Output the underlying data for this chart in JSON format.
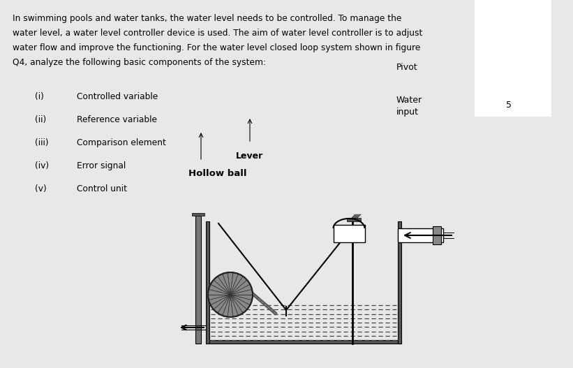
{
  "background_color": "#c8c8c8",
  "content_bg": "#e8e8e8",
  "fig_width": 8.21,
  "fig_height": 5.27,
  "dpi": 100,
  "paragraph_text": "In swimming pools and water tanks, the water level needs to be controlled. To manage the\nwater level, a water level controller device is used. The aim of water level controller is to adjust\nwater flow and improve the functioning. For the water level closed loop system shown in figure\nQ4, analyze the following basic components of the system:",
  "list_items": [
    {
      "roman": "(i)",
      "text": "Controlled variable"
    },
    {
      "roman": "(ii)",
      "text": "Reference variable"
    },
    {
      "roman": "(iii)",
      "text": "Comparison element"
    },
    {
      "roman": "(iv)",
      "text": "Error signal"
    },
    {
      "roman": "(v)",
      "text": "Control unit"
    }
  ],
  "diagram_label_hollow_ball": "Hollow ball",
  "diagram_label_lever": "Lever",
  "diagram_label_water_input": "Water\ninput",
  "diagram_label_pivot": "Pivot",
  "number_5": "5"
}
